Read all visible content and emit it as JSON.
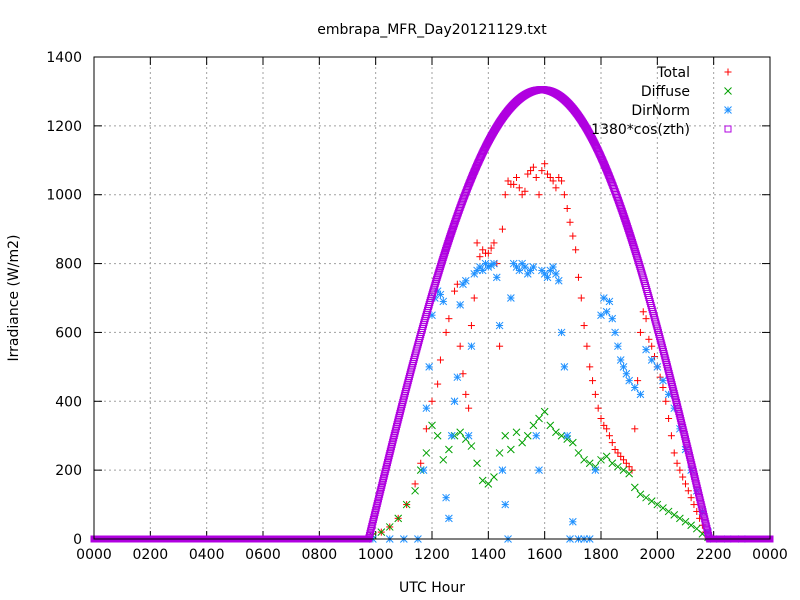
{
  "chart_data": {
    "type": "scatter",
    "title": "embrapa_MFR_Day20121129.txt",
    "xlabel": "UTC Hour",
    "ylabel": "Irradiance (W/m2)",
    "xlim": [
      0,
      24
    ],
    "ylim": [
      0,
      1400
    ],
    "x_tick_labels": [
      "0000",
      "0200",
      "0400",
      "0600",
      "0800",
      "1000",
      "1200",
      "1400",
      "1600",
      "1800",
      "2000",
      "2200",
      "0000"
    ],
    "y_tick_labels": [
      "0",
      "200",
      "400",
      "600",
      "800",
      "1000",
      "1200",
      "1400"
    ],
    "grid": true,
    "legend_position": "top-right",
    "series": [
      {
        "name": "Total",
        "marker": "plus",
        "color": "#ff0000",
        "points": [
          [
            9.9,
            15
          ],
          [
            10.2,
            20
          ],
          [
            10.5,
            35
          ],
          [
            10.8,
            60
          ],
          [
            11.1,
            100
          ],
          [
            11.4,
            160
          ],
          [
            11.6,
            220
          ],
          [
            11.8,
            320
          ],
          [
            12.0,
            400
          ],
          [
            12.2,
            450
          ],
          [
            12.3,
            520
          ],
          [
            12.5,
            600
          ],
          [
            12.6,
            640
          ],
          [
            12.8,
            720
          ],
          [
            12.9,
            740
          ],
          [
            13.0,
            560
          ],
          [
            13.1,
            480
          ],
          [
            13.2,
            420
          ],
          [
            13.3,
            380
          ],
          [
            13.4,
            620
          ],
          [
            13.5,
            700
          ],
          [
            13.6,
            860
          ],
          [
            13.7,
            820
          ],
          [
            13.8,
            840
          ],
          [
            13.9,
            830
          ],
          [
            14.0,
            830
          ],
          [
            14.1,
            845
          ],
          [
            14.2,
            860
          ],
          [
            14.3,
            800
          ],
          [
            14.4,
            560
          ],
          [
            14.5,
            900
          ],
          [
            14.6,
            1000
          ],
          [
            14.7,
            1040
          ],
          [
            14.8,
            1030
          ],
          [
            14.9,
            1030
          ],
          [
            15.0,
            1050
          ],
          [
            15.1,
            1020
          ],
          [
            15.2,
            1000
          ],
          [
            15.3,
            1010
          ],
          [
            15.4,
            1060
          ],
          [
            15.5,
            1070
          ],
          [
            15.6,
            1080
          ],
          [
            15.7,
            1050
          ],
          [
            15.8,
            1000
          ],
          [
            15.9,
            1070
          ],
          [
            16.0,
            1090
          ],
          [
            16.1,
            1060
          ],
          [
            16.2,
            1050
          ],
          [
            16.3,
            1040
          ],
          [
            16.4,
            1020
          ],
          [
            16.5,
            1050
          ],
          [
            16.6,
            1040
          ],
          [
            16.7,
            1000
          ],
          [
            16.8,
            960
          ],
          [
            16.9,
            920
          ],
          [
            17.0,
            880
          ],
          [
            17.1,
            840
          ],
          [
            17.2,
            760
          ],
          [
            17.3,
            700
          ],
          [
            17.4,
            620
          ],
          [
            17.5,
            560
          ],
          [
            17.6,
            500
          ],
          [
            17.7,
            460
          ],
          [
            17.8,
            420
          ],
          [
            17.9,
            380
          ],
          [
            18.0,
            350
          ],
          [
            18.1,
            330
          ],
          [
            18.2,
            320
          ],
          [
            18.3,
            300
          ],
          [
            18.4,
            280
          ],
          [
            18.5,
            260
          ],
          [
            18.6,
            250
          ],
          [
            18.7,
            240
          ],
          [
            18.8,
            230
          ],
          [
            18.9,
            220
          ],
          [
            19.0,
            210
          ],
          [
            19.1,
            200
          ],
          [
            19.2,
            320
          ],
          [
            19.3,
            460
          ],
          [
            19.4,
            600
          ],
          [
            19.5,
            660
          ],
          [
            19.6,
            640
          ],
          [
            19.7,
            580
          ],
          [
            19.8,
            560
          ],
          [
            19.9,
            530
          ],
          [
            20.0,
            500
          ],
          [
            20.1,
            470
          ],
          [
            20.2,
            440
          ],
          [
            20.3,
            400
          ],
          [
            20.4,
            350
          ],
          [
            20.5,
            300
          ],
          [
            20.6,
            250
          ],
          [
            20.7,
            220
          ],
          [
            20.8,
            200
          ],
          [
            20.9,
            180
          ],
          [
            21.0,
            160
          ],
          [
            21.1,
            140
          ],
          [
            21.2,
            120
          ],
          [
            21.3,
            100
          ],
          [
            21.4,
            80
          ],
          [
            21.5,
            60
          ],
          [
            21.6,
            40
          ],
          [
            21.7,
            20
          ],
          [
            21.8,
            5
          ]
        ]
      },
      {
        "name": "Diffuse",
        "marker": "cross",
        "color": "#00a000",
        "points": [
          [
            9.9,
            10
          ],
          [
            10.2,
            20
          ],
          [
            10.5,
            35
          ],
          [
            10.8,
            60
          ],
          [
            11.1,
            100
          ],
          [
            11.4,
            140
          ],
          [
            11.6,
            200
          ],
          [
            11.8,
            250
          ],
          [
            12.0,
            330
          ],
          [
            12.2,
            300
          ],
          [
            12.4,
            230
          ],
          [
            12.6,
            260
          ],
          [
            12.8,
            300
          ],
          [
            13.0,
            310
          ],
          [
            13.2,
            290
          ],
          [
            13.4,
            270
          ],
          [
            13.6,
            220
          ],
          [
            13.8,
            170
          ],
          [
            14.0,
            160
          ],
          [
            14.2,
            180
          ],
          [
            14.4,
            250
          ],
          [
            14.6,
            300
          ],
          [
            14.8,
            260
          ],
          [
            15.0,
            310
          ],
          [
            15.2,
            280
          ],
          [
            15.4,
            300
          ],
          [
            15.6,
            330
          ],
          [
            15.8,
            350
          ],
          [
            16.0,
            370
          ],
          [
            16.2,
            330
          ],
          [
            16.4,
            310
          ],
          [
            16.6,
            300
          ],
          [
            16.8,
            290
          ],
          [
            17.0,
            280
          ],
          [
            17.2,
            250
          ],
          [
            17.4,
            230
          ],
          [
            17.6,
            220
          ],
          [
            17.8,
            210
          ],
          [
            18.0,
            230
          ],
          [
            18.2,
            240
          ],
          [
            18.4,
            220
          ],
          [
            18.6,
            210
          ],
          [
            18.8,
            200
          ],
          [
            19.0,
            190
          ],
          [
            19.2,
            150
          ],
          [
            19.4,
            130
          ],
          [
            19.6,
            120
          ],
          [
            19.8,
            110
          ],
          [
            20.0,
            100
          ],
          [
            20.2,
            90
          ],
          [
            20.4,
            80
          ],
          [
            20.6,
            70
          ],
          [
            20.8,
            60
          ],
          [
            21.0,
            50
          ],
          [
            21.2,
            40
          ],
          [
            21.4,
            30
          ],
          [
            21.6,
            15
          ],
          [
            21.8,
            5
          ]
        ]
      },
      {
        "name": "DirNorm",
        "marker": "star",
        "color": "#1e90ff",
        "points": [
          [
            9.9,
            0
          ],
          [
            10.5,
            0
          ],
          [
            11.0,
            0
          ],
          [
            11.5,
            0
          ],
          [
            11.7,
            200
          ],
          [
            11.8,
            380
          ],
          [
            11.9,
            500
          ],
          [
            12.0,
            650
          ],
          [
            12.1,
            700
          ],
          [
            12.2,
            720
          ],
          [
            12.3,
            710
          ],
          [
            12.4,
            690
          ],
          [
            12.5,
            120
          ],
          [
            12.6,
            60
          ],
          [
            12.7,
            300
          ],
          [
            12.8,
            400
          ],
          [
            12.9,
            470
          ],
          [
            13.0,
            680
          ],
          [
            13.1,
            740
          ],
          [
            13.2,
            750
          ],
          [
            13.3,
            300
          ],
          [
            13.4,
            560
          ],
          [
            13.5,
            770
          ],
          [
            13.6,
            780
          ],
          [
            13.7,
            790
          ],
          [
            13.8,
            780
          ],
          [
            13.9,
            800
          ],
          [
            14.0,
            790
          ],
          [
            14.1,
            795
          ],
          [
            14.2,
            800
          ],
          [
            14.3,
            760
          ],
          [
            14.4,
            620
          ],
          [
            14.5,
            200
          ],
          [
            14.6,
            100
          ],
          [
            14.7,
            0
          ],
          [
            14.8,
            700
          ],
          [
            14.9,
            800
          ],
          [
            15.0,
            790
          ],
          [
            15.1,
            780
          ],
          [
            15.2,
            800
          ],
          [
            15.3,
            790
          ],
          [
            15.4,
            770
          ],
          [
            15.5,
            780
          ],
          [
            15.6,
            790
          ],
          [
            15.7,
            300
          ],
          [
            15.8,
            200
          ],
          [
            15.9,
            780
          ],
          [
            16.0,
            770
          ],
          [
            16.1,
            760
          ],
          [
            16.2,
            780
          ],
          [
            16.3,
            790
          ],
          [
            16.4,
            770
          ],
          [
            16.5,
            750
          ],
          [
            16.6,
            600
          ],
          [
            16.7,
            500
          ],
          [
            16.8,
            300
          ],
          [
            16.9,
            0
          ],
          [
            17.0,
            50
          ],
          [
            17.2,
            0
          ],
          [
            17.4,
            0
          ],
          [
            17.6,
            0
          ],
          [
            17.8,
            200
          ],
          [
            18.0,
            650
          ],
          [
            18.1,
            700
          ],
          [
            18.2,
            660
          ],
          [
            18.3,
            690
          ],
          [
            18.4,
            640
          ],
          [
            18.5,
            600
          ],
          [
            18.6,
            560
          ],
          [
            18.7,
            520
          ],
          [
            18.8,
            500
          ],
          [
            18.9,
            480
          ],
          [
            19.0,
            460
          ],
          [
            19.2,
            440
          ],
          [
            19.4,
            420
          ],
          [
            19.6,
            550
          ],
          [
            19.8,
            520
          ],
          [
            20.0,
            500
          ],
          [
            20.2,
            460
          ],
          [
            20.4,
            420
          ],
          [
            20.6,
            380
          ],
          [
            20.8,
            320
          ],
          [
            21.0,
            260
          ],
          [
            21.2,
            200
          ],
          [
            21.4,
            140
          ],
          [
            21.6,
            80
          ],
          [
            21.8,
            20
          ],
          [
            22.0,
            0
          ],
          [
            22.5,
            0
          ],
          [
            23.0,
            0
          ]
        ]
      },
      {
        "name": "1380*cos(zth)",
        "marker": "square",
        "color": "#b000e0",
        "formula": "1380*cos(zth)",
        "peak_hour": 15.9,
        "peak_value": 1305,
        "sunrise_hour": 9.75,
        "sunset_hour": 21.85,
        "zero_value": 0
      }
    ]
  }
}
